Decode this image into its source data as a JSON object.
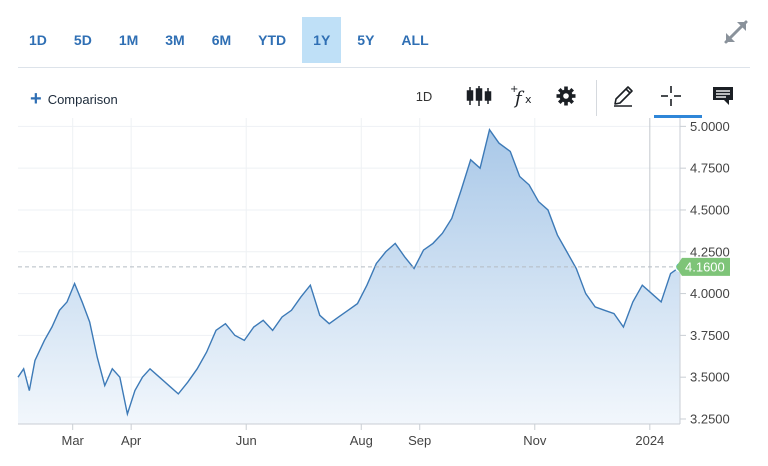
{
  "range_buttons": [
    "1D",
    "5D",
    "1M",
    "3M",
    "6M",
    "YTD",
    "1Y",
    "5Y",
    "ALL"
  ],
  "active_range": "1Y",
  "toolbar": {
    "comparison_label": "Comparison",
    "interval_label": "1D",
    "icons": [
      "expand-icon",
      "candlestick-icon",
      "function-icon",
      "gear-icon",
      "pencil-icon",
      "crosshair-icon",
      "comment-icon"
    ]
  },
  "colors": {
    "line": "#3d7ab7",
    "area_top": "#a9c8e8",
    "area_bottom": "#f2f7fc",
    "last_price_badge": "#7ec478",
    "active_tab_bg": "#bfe0f7",
    "accent": "#2f6fb4"
  },
  "chart_data": {
    "type": "area",
    "title": "",
    "xlabel": "",
    "ylabel": "",
    "x_tick_labels": [
      "Mar",
      "Apr",
      "Jun",
      "Aug",
      "Sep",
      "Nov",
      "2024"
    ],
    "y_tick_labels": [
      "5.0000",
      "4.7500",
      "4.5000",
      "4.2500",
      "4.0000",
      "3.7500",
      "3.5000",
      "3.2500"
    ],
    "ylim": [
      3.22,
      5.05
    ],
    "last_value": 4.16,
    "last_value_label": "4.1600",
    "grid": true,
    "series": [
      {
        "x": [
          "2023-01-31",
          "2023-02-03",
          "2023-02-06",
          "2023-02-09",
          "2023-02-14",
          "2023-02-18",
          "2023-02-22",
          "2023-02-26",
          "2023-03-02",
          "2023-03-06",
          "2023-03-10",
          "2023-03-14",
          "2023-03-18",
          "2023-03-22",
          "2023-03-26",
          "2023-03-30",
          "2023-04-03",
          "2023-04-07",
          "2023-04-11",
          "2023-04-16",
          "2023-04-21",
          "2023-04-26",
          "2023-05-01",
          "2023-05-06",
          "2023-05-11",
          "2023-05-16",
          "2023-05-21",
          "2023-05-26",
          "2023-05-31",
          "2023-06-05",
          "2023-06-10",
          "2023-06-15",
          "2023-06-20",
          "2023-06-25",
          "2023-06-30",
          "2023-07-05",
          "2023-07-10",
          "2023-07-15",
          "2023-07-20",
          "2023-07-25",
          "2023-07-30",
          "2023-08-04",
          "2023-08-09",
          "2023-08-14",
          "2023-08-19",
          "2023-08-24",
          "2023-08-29",
          "2023-09-03",
          "2023-09-08",
          "2023-09-13",
          "2023-09-18",
          "2023-09-23",
          "2023-09-28",
          "2023-10-03",
          "2023-10-08",
          "2023-10-13",
          "2023-10-19",
          "2023-10-24",
          "2023-10-29",
          "2023-11-03",
          "2023-11-08",
          "2023-11-13",
          "2023-11-18",
          "2023-11-23",
          "2023-11-28",
          "2023-12-03",
          "2023-12-08",
          "2023-12-13",
          "2023-12-18",
          "2023-12-23",
          "2023-12-28",
          "2024-01-02",
          "2024-01-07",
          "2024-01-12",
          "2024-01-17"
        ],
        "values": [
          3.5,
          3.55,
          3.42,
          3.6,
          3.72,
          3.8,
          3.9,
          3.95,
          4.06,
          3.95,
          3.83,
          3.62,
          3.45,
          3.55,
          3.5,
          3.28,
          3.42,
          3.5,
          3.55,
          3.5,
          3.45,
          3.4,
          3.47,
          3.55,
          3.65,
          3.78,
          3.82,
          3.75,
          3.72,
          3.8,
          3.84,
          3.78,
          3.86,
          3.9,
          3.98,
          4.05,
          3.87,
          3.82,
          3.86,
          3.9,
          3.94,
          4.05,
          4.18,
          4.25,
          4.3,
          4.22,
          4.15,
          4.26,
          4.3,
          4.36,
          4.45,
          4.62,
          4.8,
          4.75,
          4.98,
          4.9,
          4.85,
          4.7,
          4.65,
          4.55,
          4.5,
          4.35,
          4.25,
          4.15,
          4.0,
          3.92,
          3.9,
          3.88,
          3.8,
          3.95,
          4.05,
          4.0,
          3.95,
          4.12,
          4.16
        ]
      }
    ]
  }
}
